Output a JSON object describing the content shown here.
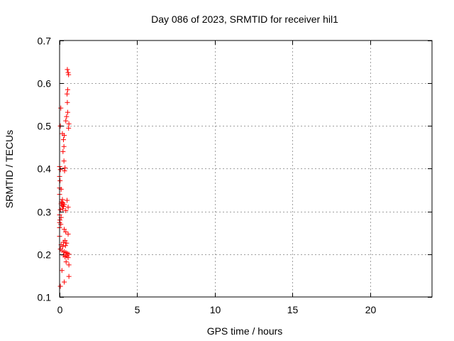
{
  "chart_data": {
    "type": "scatter",
    "title": "Day 086 of 2023, SRMTID for receiver hil1",
    "xlabel": "GPS time / hours",
    "ylabel": "SRMTID / TECUs",
    "xlim": [
      0,
      24
    ],
    "ylim": [
      0.1,
      0.7
    ],
    "grid": true,
    "marker": "+",
    "x_ticks": [
      0,
      5,
      10,
      15,
      20
    ],
    "y_ticks": [
      0.1,
      0.2,
      0.3,
      0.4,
      0.5,
      0.6,
      0.7
    ],
    "x_tick_labels": [
      "0",
      "5",
      "10",
      "15",
      "20"
    ],
    "y_tick_labels": [
      "0.1",
      "0.2",
      "0.3",
      "0.4",
      "0.5",
      "0.6",
      "0.7"
    ],
    "series": [
      {
        "name": "hil1",
        "color": "#ff0000",
        "points": [
          [
            0.5,
            0.632
          ],
          [
            0.55,
            0.625
          ],
          [
            0.58,
            0.62
          ],
          [
            0.52,
            0.585
          ],
          [
            0.48,
            0.575
          ],
          [
            0.5,
            0.555
          ],
          [
            0.52,
            0.532
          ],
          [
            0.45,
            0.522
          ],
          [
            0.4,
            0.512
          ],
          [
            0.6,
            0.505
          ],
          [
            0.58,
            0.495
          ],
          [
            0.08,
            0.542
          ],
          [
            0.05,
            0.5
          ],
          [
            0.18,
            0.482
          ],
          [
            0.3,
            0.478
          ],
          [
            0.25,
            0.468
          ],
          [
            0.28,
            0.452
          ],
          [
            0.22,
            0.44
          ],
          [
            0.28,
            0.418
          ],
          [
            0.0,
            0.405
          ],
          [
            0.35,
            0.402
          ],
          [
            0.05,
            0.398
          ],
          [
            0.32,
            0.395
          ],
          [
            0.0,
            0.382
          ],
          [
            0.03,
            0.372
          ],
          [
            0.0,
            0.355
          ],
          [
            0.1,
            0.352
          ],
          [
            0.0,
            0.34
          ],
          [
            0.18,
            0.328
          ],
          [
            0.48,
            0.326
          ],
          [
            0.12,
            0.322
          ],
          [
            0.22,
            0.32
          ],
          [
            0.1,
            0.318
          ],
          [
            0.3,
            0.316
          ],
          [
            0.15,
            0.314
          ],
          [
            0.25,
            0.312
          ],
          [
            0.55,
            0.31
          ],
          [
            0.2,
            0.306
          ],
          [
            0.05,
            0.304
          ],
          [
            0.4,
            0.302
          ],
          [
            0.0,
            0.292
          ],
          [
            0.1,
            0.286
          ],
          [
            0.02,
            0.28
          ],
          [
            0.0,
            0.274
          ],
          [
            0.08,
            0.27
          ],
          [
            0.0,
            0.262
          ],
          [
            0.3,
            0.258
          ],
          [
            0.4,
            0.252
          ],
          [
            0.55,
            0.247
          ],
          [
            0.0,
            0.242
          ],
          [
            0.35,
            0.232
          ],
          [
            0.25,
            0.228
          ],
          [
            0.45,
            0.226
          ],
          [
            0.1,
            0.222
          ],
          [
            0.38,
            0.22
          ],
          [
            0.2,
            0.218
          ],
          [
            0.05,
            0.212
          ],
          [
            0.15,
            0.208
          ],
          [
            0.3,
            0.206
          ],
          [
            0.4,
            0.204
          ],
          [
            0.5,
            0.202
          ],
          [
            0.6,
            0.2
          ],
          [
            0.25,
            0.198
          ],
          [
            0.45,
            0.196
          ],
          [
            0.35,
            0.194
          ],
          [
            0.55,
            0.192
          ],
          [
            0.42,
            0.182
          ],
          [
            0.6,
            0.175
          ],
          [
            0.15,
            0.162
          ],
          [
            0.6,
            0.148
          ],
          [
            0.3,
            0.135
          ],
          [
            0.05,
            0.125
          ]
        ]
      }
    ]
  }
}
